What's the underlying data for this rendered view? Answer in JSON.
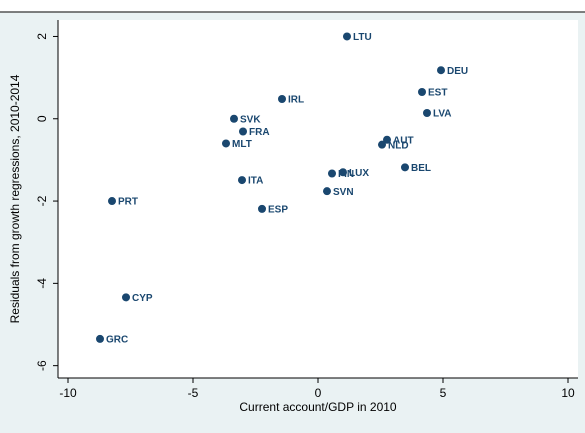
{
  "chart_data": {
    "type": "scatter",
    "x_label": "Current account/GDP in 2010",
    "y_label": "Residuals from growth regressions, 2010-2014",
    "color": "#1a476f",
    "labels": [
      "LTU",
      "DEU",
      "EST",
      "LVA",
      "IRL",
      "SVK",
      "FRA",
      "MLT",
      "AUT",
      "NLD",
      "LUX",
      "FIN",
      "BEL",
      "ITA",
      "SVN",
      "ESP",
      "PRT",
      "CYP",
      "GRC"
    ],
    "x": [
      1.16,
      4.92,
      4.16,
      4.36,
      -1.44,
      -3.36,
      -3.0,
      -3.68,
      2.76,
      2.56,
      1.0,
      0.56,
      3.48,
      -3.04,
      0.36,
      -2.24,
      -8.24,
      -7.68,
      -8.72
    ],
    "values": [
      2.0,
      1.18,
      0.65,
      0.14,
      0.48,
      0.0,
      -0.31,
      -0.6,
      -0.51,
      -0.63,
      -1.3,
      -1.33,
      -1.18,
      -1.49,
      -1.76,
      -2.19,
      -2.0,
      -4.34,
      -5.35
    ],
    "xlim": [
      -10.4,
      10.4
    ],
    "ylim": [
      -6.3,
      2.4
    ],
    "xticks": [
      -10,
      -5,
      0,
      5,
      10
    ],
    "yticks": [
      -6,
      -4,
      -2,
      0,
      2
    ]
  }
}
